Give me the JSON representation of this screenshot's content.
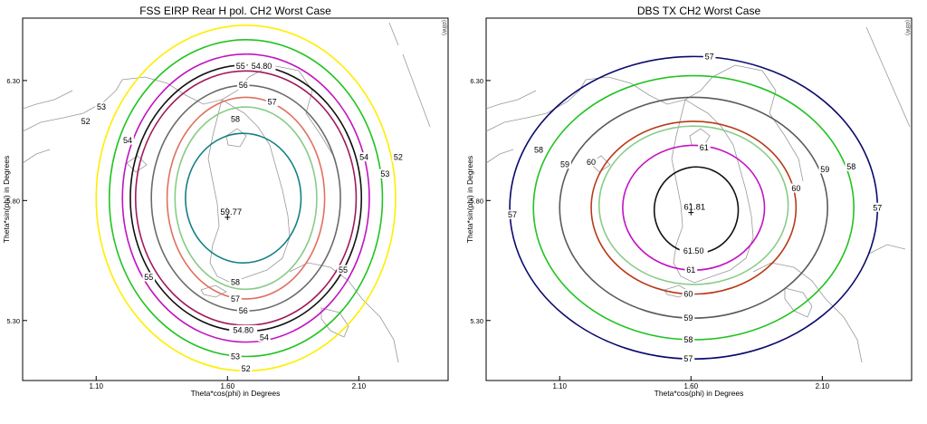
{
  "chart_data": [
    {
      "type": "contour",
      "title": "FSS EIRP Rear H pol. CH2 Worst Case",
      "xlabel": "Theta*cos(phi) in Degrees",
      "ylabel": "Theta*sin(phi) in Degrees",
      "corner_label": "(dBW)",
      "x_ticks": [
        "1.10",
        "1.60",
        "2.10"
      ],
      "y_ticks": [
        "6.30",
        "5.80",
        "5.30"
      ],
      "xlim": [
        0.82,
        2.44
      ],
      "ylim": [
        5.05,
        6.56
      ],
      "peak": {
        "label": "59.77",
        "x": 1.6,
        "y": 5.73
      },
      "contours": [
        {
          "level": "52",
          "color": "#ffee00",
          "cx": 1.67,
          "cy": 5.81,
          "rx": 0.57,
          "ry": 0.72,
          "labels": [
            {
              "text": "52",
              "x": 1.06,
              "y": 6.13
            },
            {
              "text": "52",
              "x": 2.25,
              "y": 5.98
            },
            {
              "text": "52",
              "x": 1.67,
              "y": 5.1
            }
          ]
        },
        {
          "level": "53",
          "color": "#22c322",
          "cx": 1.67,
          "cy": 5.81,
          "rx": 0.52,
          "ry": 0.66,
          "labels": [
            {
              "text": "53",
              "x": 1.12,
              "y": 6.19
            },
            {
              "text": "53",
              "x": 2.2,
              "y": 5.91
            },
            {
              "text": "53",
              "x": 1.63,
              "y": 5.15
            }
          ]
        },
        {
          "level": "54",
          "color": "#c014c0",
          "cx": 1.67,
          "cy": 5.81,
          "rx": 0.47,
          "ry": 0.6,
          "labels": [
            {
              "text": "54",
              "x": 1.22,
              "y": 6.05
            },
            {
              "text": "54",
              "x": 2.12,
              "y": 5.98
            },
            {
              "text": "54",
              "x": 1.74,
              "y": 5.23
            }
          ]
        },
        {
          "level": "54.80",
          "color": "#111111",
          "cx": 1.67,
          "cy": 5.81,
          "rx": 0.44,
          "ry": 0.555,
          "labels": [
            {
              "text": "54.80",
              "x": 1.73,
              "y": 6.36
            },
            {
              "text": "54.80",
              "x": 1.66,
              "y": 5.26
            }
          ]
        },
        {
          "level": "55",
          "color": "#a01a5a",
          "cx": 1.67,
          "cy": 5.81,
          "rx": 0.42,
          "ry": 0.53,
          "labels": [
            {
              "text": "55",
              "x": 1.65,
              "y": 6.36
            },
            {
              "text": "55",
              "x": 1.3,
              "y": 5.48
            },
            {
              "text": "55",
              "x": 2.04,
              "y": 5.51
            }
          ]
        },
        {
          "level": "56",
          "color": "#6a6a6a",
          "cx": 1.67,
          "cy": 5.81,
          "rx": 0.36,
          "ry": 0.47,
          "labels": [
            {
              "text": "56",
              "x": 1.66,
              "y": 6.28
            },
            {
              "text": "56",
              "x": 1.66,
              "y": 5.34
            }
          ]
        },
        {
          "level": "57",
          "color": "#e07060",
          "cx": 1.67,
          "cy": 5.81,
          "rx": 0.3,
          "ry": 0.42,
          "labels": [
            {
              "text": "57",
              "x": 1.77,
              "y": 6.21
            },
            {
              "text": "57",
              "x": 1.63,
              "y": 5.39
            }
          ]
        },
        {
          "level": "57a",
          "color": "#88cc88",
          "cx": 1.67,
          "cy": 5.81,
          "rx": 0.27,
          "ry": 0.38,
          "labels": []
        },
        {
          "level": "58",
          "color": "#137f82",
          "cx": 1.66,
          "cy": 5.81,
          "rx": 0.22,
          "ry": 0.27,
          "labels": [
            {
              "text": "58",
              "x": 1.63,
              "y": 6.14
            },
            {
              "text": "58",
              "x": 1.63,
              "y": 5.46
            }
          ]
        }
      ]
    },
    {
      "type": "contour",
      "title": "DBS TX CH2 Worst Case",
      "xlabel": "Theta*cos(phi) in Degrees",
      "ylabel": "Theta*sin(phi) in Degrees",
      "corner_label": "(dBW)",
      "x_ticks": [
        "1.10",
        "1.60",
        "2.10"
      ],
      "y_ticks": [
        "6.30",
        "5.80",
        "5.30"
      ],
      "xlim": [
        0.82,
        2.44
      ],
      "ylim": [
        5.05,
        6.56
      ],
      "peak": {
        "label": "61.81",
        "x": 1.6,
        "y": 5.75
      },
      "contours": [
        {
          "level": "57",
          "color": "#0a0a6e",
          "cx": 1.61,
          "cy": 5.77,
          "rx": 0.7,
          "ry": 0.63,
          "labels": [
            {
              "text": "57",
              "x": 1.67,
              "y": 6.4
            },
            {
              "text": "57",
              "x": 0.92,
              "y": 5.74
            },
            {
              "text": "57",
              "x": 2.31,
              "y": 5.77
            },
            {
              "text": "57",
              "x": 1.59,
              "y": 5.14
            }
          ]
        },
        {
          "level": "58",
          "color": "#22c322",
          "cx": 1.61,
          "cy": 5.77,
          "rx": 0.61,
          "ry": 0.55,
          "labels": [
            {
              "text": "58",
              "x": 1.02,
              "y": 6.01
            },
            {
              "text": "58",
              "x": 2.21,
              "y": 5.94
            },
            {
              "text": "58",
              "x": 1.59,
              "y": 5.22
            }
          ]
        },
        {
          "level": "59",
          "color": "#5a5a5a",
          "cx": 1.61,
          "cy": 5.77,
          "rx": 0.51,
          "ry": 0.46,
          "labels": [
            {
              "text": "59",
              "x": 1.12,
              "y": 5.95
            },
            {
              "text": "59",
              "x": 2.11,
              "y": 5.93
            },
            {
              "text": "59",
              "x": 1.59,
              "y": 5.31
            }
          ]
        },
        {
          "level": "60",
          "color": "#b83a1a",
          "cx": 1.61,
          "cy": 5.77,
          "rx": 0.39,
          "ry": 0.36,
          "labels": [
            {
              "text": "60",
              "x": 1.22,
              "y": 5.96
            },
            {
              "text": "60",
              "x": 2.0,
              "y": 5.85
            },
            {
              "text": "60",
              "x": 1.59,
              "y": 5.41
            }
          ]
        },
        {
          "level": "60a",
          "color": "#88cc88",
          "cx": 1.61,
          "cy": 5.78,
          "rx": 0.36,
          "ry": 0.33,
          "labels": []
        },
        {
          "level": "61",
          "color": "#c014c0",
          "cx": 1.61,
          "cy": 5.77,
          "rx": 0.27,
          "ry": 0.26,
          "labels": [
            {
              "text": "61",
              "x": 1.65,
              "y": 6.02
            },
            {
              "text": "61",
              "x": 1.6,
              "y": 5.51
            }
          ]
        },
        {
          "level": "61.50",
          "color": "#111111",
          "cx": 1.62,
          "cy": 5.76,
          "rx": 0.16,
          "ry": 0.18,
          "labels": [
            {
              "text": "61.50",
              "x": 1.61,
              "y": 5.59
            }
          ]
        }
      ]
    }
  ]
}
